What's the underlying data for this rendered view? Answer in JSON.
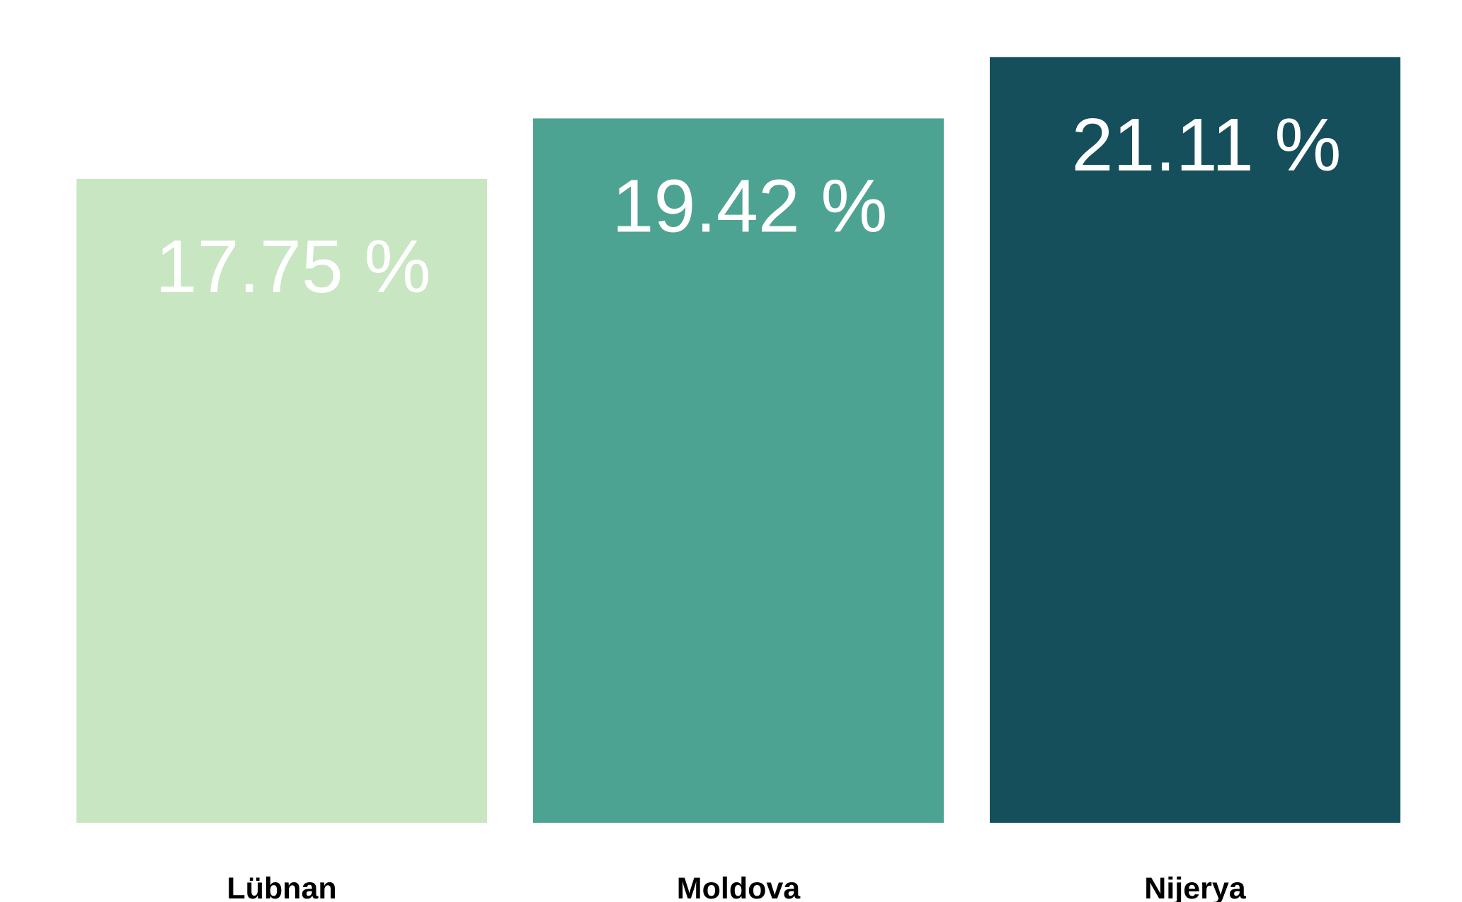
{
  "chart_data": {
    "type": "bar",
    "categories": [
      "Lübnan",
      "Moldova",
      "Nijerya"
    ],
    "values": [
      17.75,
      19.42,
      21.11
    ],
    "value_labels": [
      "17.75 %",
      "19.42 %",
      "21.11 %"
    ],
    "colors": [
      "#c8e6c1",
      "#4da391",
      "#154f5c"
    ],
    "ylim": [
      0,
      22.1
    ],
    "grid": false,
    "legend": "none"
  }
}
